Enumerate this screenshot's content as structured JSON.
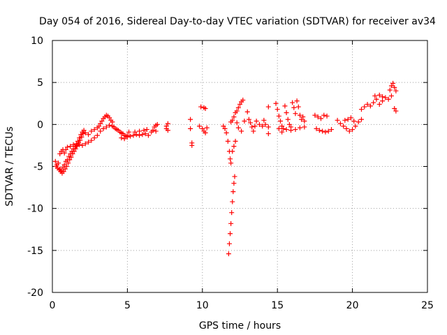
{
  "chart_data": {
    "type": "scatter",
    "title": "Day 054 of 2016, Sidereal Day-to-day VTEC variation (SDTVAR) for receiver av34",
    "xlabel": "GPS time / hours",
    "ylabel": "SDTVAR / TECUs",
    "xlim": [
      0,
      25
    ],
    "ylim": [
      -20,
      10
    ],
    "xticks": [
      0,
      5,
      10,
      15,
      20,
      25
    ],
    "yticks": [
      -20,
      -15,
      -10,
      -5,
      0,
      5,
      10
    ],
    "xtick_labels": [
      "0",
      "5",
      "10",
      "15",
      "20",
      "25"
    ],
    "ytick_labels": [
      "-20",
      "-15",
      "-10",
      "-5",
      "0",
      "5",
      "10"
    ],
    "grid": true,
    "legend": "none",
    "marker": "+",
    "color": "#ff0000",
    "series": [
      {
        "name": "av34",
        "points": [
          [
            0.2,
            -4.4
          ],
          [
            0.25,
            -5.0
          ],
          [
            0.3,
            -4.8
          ],
          [
            0.35,
            -5.2
          ],
          [
            0.4,
            -4.6
          ],
          [
            0.45,
            -5.4
          ],
          [
            0.5,
            -5.3
          ],
          [
            0.55,
            -5.6
          ],
          [
            0.6,
            -5.5
          ],
          [
            0.65,
            -5.8
          ],
          [
            0.7,
            -5.1
          ],
          [
            0.75,
            -5.6
          ],
          [
            0.8,
            -4.8
          ],
          [
            0.85,
            -5.3
          ],
          [
            0.9,
            -4.4
          ],
          [
            0.95,
            -5.0
          ],
          [
            1.0,
            -4.2
          ],
          [
            1.05,
            -4.6
          ],
          [
            1.1,
            -3.8
          ],
          [
            1.15,
            -4.2
          ],
          [
            1.2,
            -3.5
          ],
          [
            1.25,
            -3.9
          ],
          [
            1.3,
            -3.2
          ],
          [
            1.35,
            -3.5
          ],
          [
            1.4,
            -2.9
          ],
          [
            1.45,
            -3.2
          ],
          [
            1.5,
            -2.6
          ],
          [
            1.55,
            -2.9
          ],
          [
            1.6,
            -2.3
          ],
          [
            1.65,
            -2.5
          ],
          [
            1.7,
            -2.0
          ],
          [
            1.75,
            -2.2
          ],
          [
            1.8,
            -1.6
          ],
          [
            1.85,
            -1.9
          ],
          [
            1.9,
            -1.2
          ],
          [
            1.95,
            -1.5
          ],
          [
            2.0,
            -0.9
          ],
          [
            2.05,
            -1.1
          ],
          [
            2.1,
            -0.7
          ],
          [
            0.5,
            -3.5
          ],
          [
            0.6,
            -3.2
          ],
          [
            0.7,
            -3.0
          ],
          [
            0.8,
            -3.4
          ],
          [
            0.9,
            -3.0
          ],
          [
            1.0,
            -2.7
          ],
          [
            1.2,
            -2.6
          ],
          [
            1.4,
            -2.4
          ],
          [
            1.6,
            -2.6
          ],
          [
            1.8,
            -2.4
          ],
          [
            2.0,
            -2.5
          ],
          [
            2.2,
            -2.3
          ],
          [
            2.4,
            -2.1
          ],
          [
            2.6,
            -1.9
          ],
          [
            2.8,
            -1.6
          ],
          [
            3.0,
            -1.3
          ],
          [
            2.2,
            -1.0
          ],
          [
            2.4,
            -1.2
          ],
          [
            2.6,
            -0.8
          ],
          [
            2.8,
            -0.6
          ],
          [
            3.0,
            -0.4
          ],
          [
            3.1,
            -0.2
          ],
          [
            3.2,
            0.1
          ],
          [
            3.3,
            0.4
          ],
          [
            3.4,
            0.7
          ],
          [
            3.5,
            0.9
          ],
          [
            3.6,
            1.1
          ],
          [
            3.7,
            1.0
          ],
          [
            3.8,
            0.8
          ],
          [
            3.9,
            0.5
          ],
          [
            4.0,
            0.3
          ],
          [
            3.2,
            -0.8
          ],
          [
            3.4,
            -0.5
          ],
          [
            3.6,
            -0.3
          ],
          [
            3.8,
            -0.1
          ],
          [
            4.0,
            -0.2
          ],
          [
            4.1,
            -0.3
          ],
          [
            4.2,
            -0.5
          ],
          [
            4.3,
            -0.6
          ],
          [
            4.4,
            -0.7
          ],
          [
            4.5,
            -0.9
          ],
          [
            4.6,
            -1.0
          ],
          [
            4.7,
            -1.1
          ],
          [
            4.8,
            -1.3
          ],
          [
            4.9,
            -1.4
          ],
          [
            5.0,
            -1.5
          ],
          [
            4.6,
            -1.6
          ],
          [
            4.8,
            -1.7
          ],
          [
            5.0,
            -1.3
          ],
          [
            5.1,
            -0.9
          ],
          [
            5.2,
            -1.4
          ],
          [
            5.4,
            -1.3
          ],
          [
            5.6,
            -1.2
          ],
          [
            5.8,
            -1.3
          ],
          [
            6.0,
            -1.2
          ],
          [
            6.2,
            -1.1
          ],
          [
            5.5,
            -0.9
          ],
          [
            5.8,
            -0.8
          ],
          [
            6.1,
            -0.7
          ],
          [
            6.3,
            -0.6
          ],
          [
            6.4,
            -1.3
          ],
          [
            6.6,
            -0.9
          ],
          [
            6.7,
            -0.7
          ],
          [
            6.8,
            -0.3
          ],
          [
            6.9,
            -0.1
          ],
          [
            7.0,
            0.0
          ],
          [
            6.9,
            -0.8
          ],
          [
            7.6,
            -0.2
          ],
          [
            7.6,
            -0.5
          ],
          [
            7.7,
            -0.7
          ],
          [
            7.7,
            0.1
          ],
          [
            9.2,
            0.6
          ],
          [
            9.2,
            -0.5
          ],
          [
            9.3,
            -2.2
          ],
          [
            9.3,
            -2.5
          ],
          [
            9.9,
            2.1
          ],
          [
            10.1,
            2.0
          ],
          [
            10.2,
            1.9
          ],
          [
            9.8,
            -0.2
          ],
          [
            10.0,
            -0.5
          ],
          [
            10.1,
            -0.8
          ],
          [
            10.2,
            -1.0
          ],
          [
            10.3,
            -0.4
          ],
          [
            11.4,
            -0.2
          ],
          [
            11.5,
            -0.5
          ],
          [
            11.6,
            -1.0
          ],
          [
            11.7,
            -2.0
          ],
          [
            11.8,
            -3.2
          ],
          [
            11.85,
            -4.1
          ],
          [
            11.9,
            -4.6
          ],
          [
            11.75,
            -15.4
          ],
          [
            11.8,
            -14.2
          ],
          [
            11.85,
            -13.0
          ],
          [
            11.9,
            -11.8
          ],
          [
            11.95,
            -10.5
          ],
          [
            12.0,
            -9.2
          ],
          [
            12.05,
            -8.0
          ],
          [
            12.1,
            -7.0
          ],
          [
            12.15,
            -6.2
          ],
          [
            12.0,
            -3.2
          ],
          [
            12.1,
            -2.6
          ],
          [
            12.2,
            -2.0
          ],
          [
            11.9,
            0.3
          ],
          [
            12.0,
            0.5
          ],
          [
            12.1,
            0.9
          ],
          [
            12.2,
            1.4
          ],
          [
            12.3,
            1.6
          ],
          [
            12.4,
            2.0
          ],
          [
            12.5,
            2.4
          ],
          [
            12.6,
            2.7
          ],
          [
            12.7,
            2.9
          ],
          [
            12.3,
            0.2
          ],
          [
            12.4,
            -0.4
          ],
          [
            12.6,
            -0.8
          ],
          [
            12.8,
            0.4
          ],
          [
            13.0,
            1.5
          ],
          [
            13.1,
            0.6
          ],
          [
            13.2,
            0.2
          ],
          [
            13.3,
            -0.3
          ],
          [
            13.4,
            -0.8
          ],
          [
            13.5,
            -0.2
          ],
          [
            13.6,
            0.4
          ],
          [
            13.8,
            0.0
          ],
          [
            14.0,
            -0.2
          ],
          [
            14.1,
            0.5
          ],
          [
            14.2,
            0.0
          ],
          [
            14.4,
            -0.3
          ],
          [
            14.4,
            2.1
          ],
          [
            14.4,
            -1.1
          ],
          [
            14.9,
            2.5
          ],
          [
            15.0,
            1.8
          ],
          [
            15.1,
            1.0
          ],
          [
            15.2,
            0.4
          ],
          [
            15.3,
            -0.2
          ],
          [
            15.4,
            -0.5
          ],
          [
            15.5,
            2.2
          ],
          [
            15.6,
            1.4
          ],
          [
            15.7,
            0.6
          ],
          [
            15.8,
            0.0
          ],
          [
            15.9,
            -0.3
          ],
          [
            16.0,
            2.6
          ],
          [
            16.1,
            2.0
          ],
          [
            16.2,
            1.3
          ],
          [
            16.3,
            2.8
          ],
          [
            16.4,
            2.1
          ],
          [
            16.5,
            1.1
          ],
          [
            16.6,
            0.6
          ],
          [
            16.7,
            0.9
          ],
          [
            16.8,
            0.4
          ],
          [
            15.1,
            -0.5
          ],
          [
            15.3,
            -0.9
          ],
          [
            15.6,
            -0.6
          ],
          [
            15.9,
            -0.7
          ],
          [
            16.2,
            -0.6
          ],
          [
            16.5,
            -0.4
          ],
          [
            16.8,
            -0.3
          ],
          [
            17.5,
            1.1
          ],
          [
            17.7,
            0.9
          ],
          [
            17.9,
            0.7
          ],
          [
            18.1,
            1.1
          ],
          [
            18.3,
            1.0
          ],
          [
            17.6,
            -0.5
          ],
          [
            17.8,
            -0.7
          ],
          [
            18.0,
            -0.8
          ],
          [
            18.2,
            -0.9
          ],
          [
            18.4,
            -0.8
          ],
          [
            18.6,
            -0.6
          ],
          [
            19.0,
            0.5
          ],
          [
            19.2,
            0.1
          ],
          [
            19.4,
            -0.2
          ],
          [
            19.6,
            -0.5
          ],
          [
            19.8,
            -0.8
          ],
          [
            20.0,
            -0.6
          ],
          [
            20.2,
            -0.2
          ],
          [
            20.4,
            0.3
          ],
          [
            20.6,
            0.6
          ],
          [
            19.5,
            0.5
          ],
          [
            19.7,
            0.6
          ],
          [
            19.9,
            0.8
          ],
          [
            20.1,
            0.4
          ],
          [
            20.6,
            1.8
          ],
          [
            20.8,
            2.1
          ],
          [
            21.0,
            2.4
          ],
          [
            21.2,
            2.2
          ],
          [
            21.4,
            2.6
          ],
          [
            21.6,
            3.0
          ],
          [
            21.8,
            2.4
          ],
          [
            22.0,
            2.8
          ],
          [
            22.2,
            3.2
          ],
          [
            21.5,
            3.4
          ],
          [
            21.8,
            3.5
          ],
          [
            22.0,
            3.3
          ],
          [
            22.4,
            3.0
          ],
          [
            22.5,
            4.1
          ],
          [
            22.6,
            4.6
          ],
          [
            22.7,
            4.9
          ],
          [
            22.8,
            4.4
          ],
          [
            22.9,
            4.0
          ],
          [
            22.6,
            3.4
          ],
          [
            22.8,
            1.9
          ],
          [
            22.9,
            1.6
          ]
        ]
      }
    ]
  }
}
